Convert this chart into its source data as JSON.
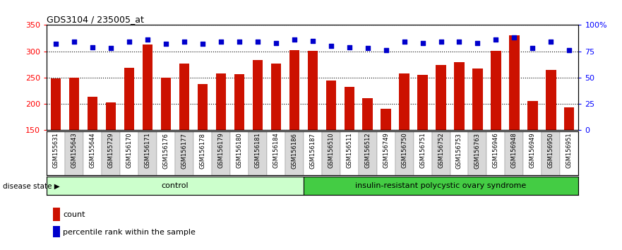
{
  "title": "GDS3104 / 235005_at",
  "samples": [
    "GSM155631",
    "GSM155643",
    "GSM155644",
    "GSM155729",
    "GSM156170",
    "GSM156171",
    "GSM156176",
    "GSM156177",
    "GSM156178",
    "GSM156179",
    "GSM156180",
    "GSM156181",
    "GSM156184",
    "GSM156186",
    "GSM156187",
    "GSM156510",
    "GSM156511",
    "GSM156512",
    "GSM156749",
    "GSM156750",
    "GSM156751",
    "GSM156752",
    "GSM156753",
    "GSM156763",
    "GSM156946",
    "GSM156948",
    "GSM156949",
    "GSM156950",
    "GSM156951"
  ],
  "counts": [
    248,
    250,
    213,
    202,
    269,
    313,
    249,
    277,
    237,
    258,
    256,
    283,
    276,
    302,
    301,
    244,
    232,
    211,
    190,
    258,
    255,
    274,
    279,
    267,
    301,
    331,
    205,
    264,
    193
  ],
  "percentiles": [
    82,
    84,
    79,
    78,
    84,
    86,
    82,
    84,
    82,
    84,
    84,
    84,
    83,
    86,
    85,
    80,
    79,
    78,
    76,
    84,
    83,
    84,
    84,
    83,
    86,
    88,
    78,
    84,
    76
  ],
  "control_count": 14,
  "disease_count": 15,
  "control_label": "control",
  "disease_label": "insulin-resistant polycystic ovary syndrome",
  "disease_state_label": "disease state",
  "ylim_left": [
    150,
    350
  ],
  "ylim_right": [
    0,
    100
  ],
  "yticks_left": [
    150,
    200,
    250,
    300,
    350
  ],
  "yticks_right": [
    0,
    25,
    50,
    75,
    100
  ],
  "ytick_labels_right": [
    "0",
    "25",
    "50",
    "75",
    "100%"
  ],
  "bar_color": "#cc1100",
  "dot_color": "#0000cc",
  "control_bg": "#ccffcc",
  "disease_bg": "#44cc44",
  "legend_count": "count",
  "legend_percentile": "percentile rank within the sample",
  "bar_width": 0.55
}
